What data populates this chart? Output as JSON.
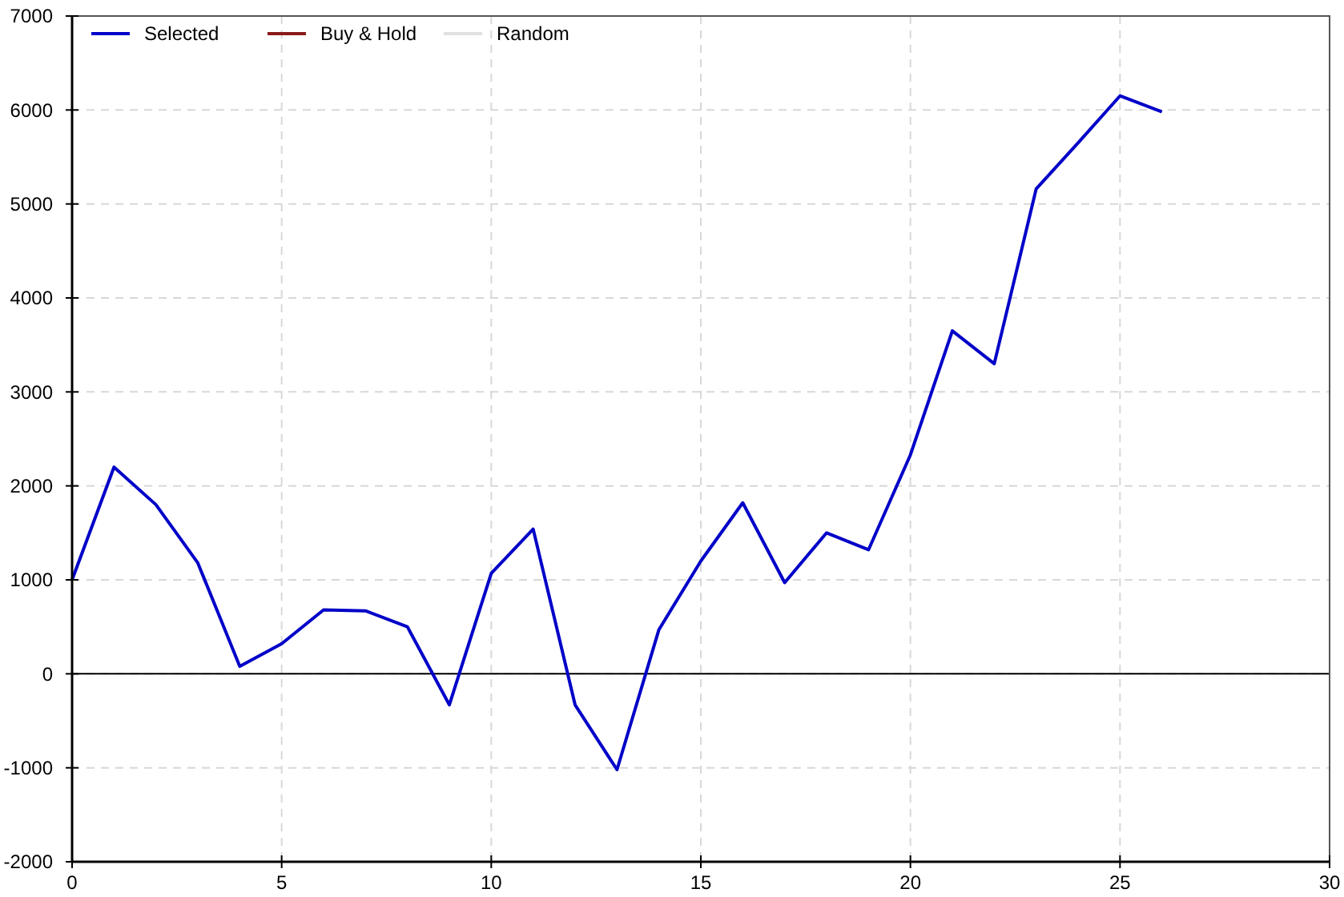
{
  "chart_data": {
    "type": "line",
    "x": [
      0,
      1,
      2,
      3,
      4,
      5,
      6,
      7,
      8,
      9,
      10,
      11,
      12,
      13,
      14,
      15,
      16,
      17,
      18,
      19,
      20,
      21,
      22,
      23,
      24,
      25,
      26
    ],
    "series": [
      {
        "name": "Selected",
        "color": "#0000c8",
        "values": [
          1000,
          2200,
          1800,
          1180,
          80,
          320,
          680,
          670,
          500,
          -330,
          1070,
          1540,
          -330,
          -1020,
          470,
          1200,
          1820,
          970,
          1500,
          1320,
          2330,
          3650,
          3300,
          5160,
          5650,
          6150,
          5980
        ]
      },
      {
        "name": "Buy & Hold",
        "color": "#8b1a1a",
        "values": [
          null,
          null,
          null,
          null,
          null,
          null,
          null,
          null,
          null,
          null,
          null,
          null,
          null,
          null,
          null,
          null,
          null,
          null,
          null,
          null,
          null,
          null,
          null,
          null,
          null,
          null,
          null
        ]
      },
      {
        "name": "Random",
        "color": "#e0e0e0",
        "values": [
          null,
          null,
          null,
          null,
          null,
          null,
          null,
          null,
          null,
          null,
          null,
          null,
          null,
          null,
          null,
          null,
          null,
          null,
          null,
          null,
          null,
          null,
          null,
          null,
          null,
          null,
          null
        ]
      }
    ],
    "xlim": [
      0,
      30
    ],
    "xticks": [
      0,
      5,
      10,
      15,
      20,
      25,
      30
    ],
    "ylim": [
      -2000,
      7000
    ],
    "yticks": [
      -2000,
      -1000,
      0,
      1000,
      2000,
      3000,
      4000,
      5000,
      6000,
      7000
    ],
    "ref_lines": [
      {
        "axis": "y",
        "value": 0,
        "color": "#000000"
      }
    ],
    "grid": true,
    "legend": "top left",
    "marker": "none",
    "line_style": "solid"
  }
}
